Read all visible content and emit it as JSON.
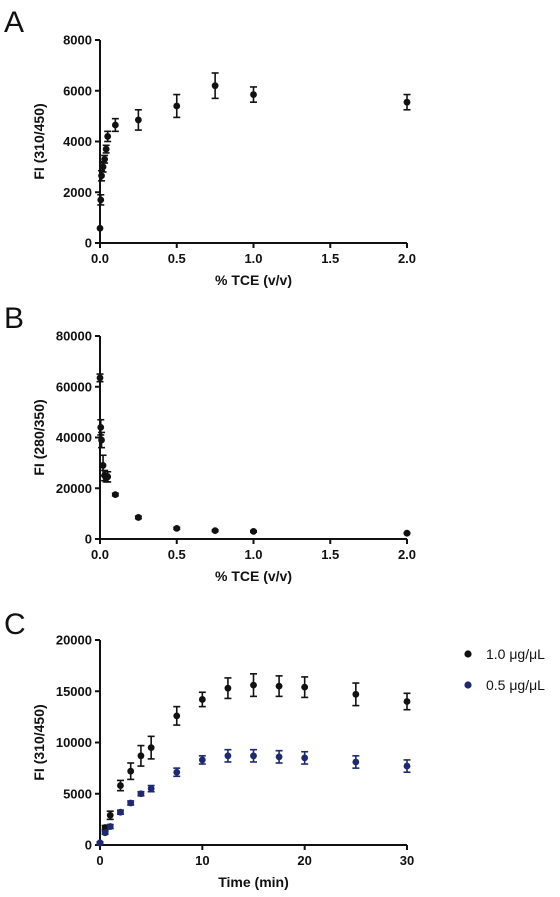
{
  "chart_data": [
    {
      "type": "scatter",
      "panel_label": "A",
      "xlabel": "% TCE (v/v)",
      "ylabel": "FI (310/450)",
      "xlim": [
        0,
        2.0
      ],
      "ylim": [
        0,
        8000
      ],
      "xticks": [
        "0.0",
        "0.5",
        "1.0",
        "1.5",
        "2.0"
      ],
      "yticks": [
        "0",
        "2000",
        "4000",
        "6000",
        "8000"
      ],
      "grid": false,
      "legend": "none",
      "series": [
        {
          "color": "#111111",
          "points": [
            {
              "x": 0.0,
              "y": 580,
              "err": 0
            },
            {
              "x": 0.005,
              "y": 1700,
              "err": 200
            },
            {
              "x": 0.01,
              "y": 2650,
              "err": 200
            },
            {
              "x": 0.02,
              "y": 3000,
              "err": 200
            },
            {
              "x": 0.03,
              "y": 3300,
              "err": 150
            },
            {
              "x": 0.04,
              "y": 3700,
              "err": 150
            },
            {
              "x": 0.05,
              "y": 4200,
              "err": 200
            },
            {
              "x": 0.1,
              "y": 4650,
              "err": 250
            },
            {
              "x": 0.25,
              "y": 4850,
              "err": 400
            },
            {
              "x": 0.5,
              "y": 5400,
              "err": 450
            },
            {
              "x": 0.75,
              "y": 6200,
              "err": 500
            },
            {
              "x": 1.0,
              "y": 5850,
              "err": 300
            },
            {
              "x": 2.0,
              "y": 5550,
              "err": 300
            }
          ]
        }
      ]
    },
    {
      "type": "scatter",
      "panel_label": "B",
      "xlabel": "% TCE (v/v)",
      "ylabel": "FI (280/350)",
      "xlim": [
        0,
        2.0
      ],
      "ylim": [
        0,
        80000
      ],
      "xticks": [
        "0.0",
        "0.5",
        "1.0",
        "1.5",
        "2.0"
      ],
      "yticks": [
        "0",
        "20000",
        "40000",
        "60000",
        "80000"
      ],
      "grid": false,
      "legend": "none",
      "series": [
        {
          "color": "#111111",
          "points": [
            {
              "x": 0.0,
              "y": 63500,
              "err": 1500
            },
            {
              "x": 0.005,
              "y": 44000,
              "err": 3000
            },
            {
              "x": 0.01,
              "y": 39000,
              "err": 3000
            },
            {
              "x": 0.02,
              "y": 29000,
              "err": 4000
            },
            {
              "x": 0.03,
              "y": 25000,
              "err": 2000
            },
            {
              "x": 0.04,
              "y": 24000,
              "err": 1500
            },
            {
              "x": 0.05,
              "y": 24500,
              "err": 2000
            },
            {
              "x": 0.1,
              "y": 17500,
              "err": 500
            },
            {
              "x": 0.25,
              "y": 8500,
              "err": 500
            },
            {
              "x": 0.5,
              "y": 4200,
              "err": 400
            },
            {
              "x": 0.75,
              "y": 3300,
              "err": 300
            },
            {
              "x": 1.0,
              "y": 3000,
              "err": 300
            },
            {
              "x": 2.0,
              "y": 2300,
              "err": 200
            }
          ]
        }
      ]
    },
    {
      "type": "scatter",
      "panel_label": "C",
      "xlabel": "Time (min)",
      "ylabel": "FI (310/450)",
      "xlim": [
        0,
        30
      ],
      "ylim": [
        0,
        20000
      ],
      "xticks": [
        "0",
        "10",
        "20",
        "30"
      ],
      "yticks": [
        "0",
        "5000",
        "10000",
        "15000",
        "20000"
      ],
      "grid": false,
      "legend": "right",
      "series": [
        {
          "name": "1.0 μg/μL",
          "color": "#111111",
          "points": [
            {
              "x": 0,
              "y": 200,
              "err": 100
            },
            {
              "x": 0.5,
              "y": 1700,
              "err": 200
            },
            {
              "x": 1,
              "y": 2900,
              "err": 400
            },
            {
              "x": 2,
              "y": 5800,
              "err": 500
            },
            {
              "x": 3,
              "y": 7200,
              "err": 800
            },
            {
              "x": 4,
              "y": 8700,
              "err": 1000
            },
            {
              "x": 5,
              "y": 9500,
              "err": 1100
            },
            {
              "x": 7.5,
              "y": 12600,
              "err": 900
            },
            {
              "x": 10,
              "y": 14200,
              "err": 700
            },
            {
              "x": 12.5,
              "y": 15300,
              "err": 1000
            },
            {
              "x": 15,
              "y": 15600,
              "err": 1100
            },
            {
              "x": 17.5,
              "y": 15500,
              "err": 1000
            },
            {
              "x": 20,
              "y": 15400,
              "err": 1000
            },
            {
              "x": 25,
              "y": 14700,
              "err": 1100
            },
            {
              "x": 30,
              "y": 14000,
              "err": 800
            }
          ]
        },
        {
          "name": "0.5 μg/μL",
          "color": "#1f2a6e",
          "points": [
            {
              "x": 0,
              "y": 200,
              "err": 100
            },
            {
              "x": 0.5,
              "y": 1200,
              "err": 150
            },
            {
              "x": 1,
              "y": 1800,
              "err": 200
            },
            {
              "x": 2,
              "y": 3200,
              "err": 200
            },
            {
              "x": 3,
              "y": 4100,
              "err": 200
            },
            {
              "x": 4,
              "y": 5000,
              "err": 200
            },
            {
              "x": 5,
              "y": 5500,
              "err": 300
            },
            {
              "x": 7.5,
              "y": 7100,
              "err": 400
            },
            {
              "x": 10,
              "y": 8300,
              "err": 400
            },
            {
              "x": 12.5,
              "y": 8700,
              "err": 600
            },
            {
              "x": 15,
              "y": 8700,
              "err": 600
            },
            {
              "x": 17.5,
              "y": 8600,
              "err": 600
            },
            {
              "x": 20,
              "y": 8500,
              "err": 600
            },
            {
              "x": 25,
              "y": 8100,
              "err": 600
            },
            {
              "x": 30,
              "y": 7700,
              "err": 600
            }
          ]
        }
      ]
    }
  ]
}
